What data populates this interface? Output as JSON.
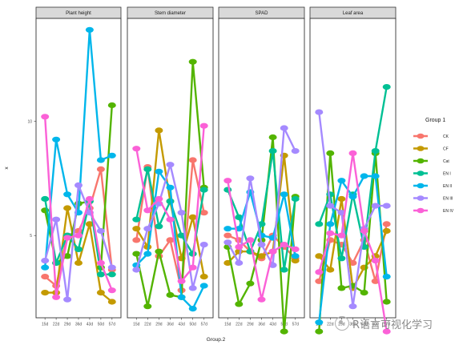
{
  "chart_data": {
    "type": "line",
    "xlabel": "Group.2",
    "ylabel": "x",
    "facets": [
      "Plant height",
      "Stem diameter",
      "SPAD",
      "Leaf area"
    ],
    "x": [
      "15d",
      "22d",
      "29d",
      "36d",
      "43d",
      "50d",
      "57d"
    ],
    "y_ticks": [
      5,
      10
    ],
    "ylim": [
      1.4,
      14.5
    ],
    "legend": {
      "title": "Group 1",
      "position": "right"
    },
    "grid": false,
    "series": [
      {
        "name": "CK",
        "color": "#F8766D",
        "values": [
          [
            3.2,
            2.8,
            5.0,
            5.2,
            6.2,
            7.9,
            3.5
          ],
          [
            4.8,
            8.0,
            4.1,
            4.8,
            2.6,
            8.3,
            6.0
          ],
          [
            5.0,
            4.8,
            4.3,
            4.0,
            5.0,
            4.5,
            4.0
          ],
          [
            3.0,
            4.8,
            4.6,
            3.8,
            4.8,
            3.0,
            5.5
          ]
        ]
      },
      {
        "name": "CF",
        "color": "#C49A00",
        "values": [
          [
            2.5,
            2.5,
            6.2,
            3.8,
            5.5,
            2.5,
            2.1
          ],
          [
            5.3,
            4.5,
            9.6,
            6.5,
            4.0,
            5.8,
            3.2
          ],
          [
            3.8,
            4.3,
            4.3,
            4.1,
            4.3,
            8.5,
            3.9
          ],
          [
            4.1,
            3.5,
            6.6,
            2.7,
            3.6,
            4.1,
            5.2
          ]
        ]
      },
      {
        "name": "Cat",
        "color": "#53B400",
        "values": [
          [
            6.1,
            3.8,
            4.1,
            6.4,
            6.5,
            3.6,
            10.7
          ],
          [
            4.2,
            1.9,
            4.3,
            2.4,
            2.3,
            12.6,
            7.1
          ],
          [
            4.5,
            2.0,
            2.9,
            4.8,
            9.3,
            0.8,
            6.7
          ],
          [
            0.8,
            8.6,
            2.7,
            2.8,
            2.5,
            8.6,
            2.1
          ]
        ]
      },
      {
        "name": "EN I",
        "color": "#00C094",
        "values": [
          [
            6.6,
            3.8,
            5.0,
            4.4,
            6.5,
            3.3,
            3.3
          ],
          [
            5.7,
            7.9,
            5.4,
            6.5,
            5.0,
            4.2,
            7.0
          ],
          [
            7.0,
            5.8,
            4.3,
            5.5,
            8.7,
            3.5,
            6.6
          ],
          [
            5.5,
            6.8,
            4.0,
            6.8,
            4.5,
            8.7,
            11.5
          ]
        ]
      },
      {
        "name": "EN II",
        "color": "#00B6EB",
        "values": [
          [
            3.6,
            9.2,
            6.8,
            6.0,
            14.0,
            8.3,
            8.5
          ],
          [
            3.7,
            4.2,
            7.8,
            7.1,
            2.3,
            1.8,
            2.8
          ],
          [
            5.3,
            5.3,
            6.9,
            5.0,
            4.9,
            6.8,
            4.1
          ],
          [
            1.2,
            5.5,
            7.4,
            6.7,
            7.6,
            7.6,
            3.2
          ]
        ]
      },
      {
        "name": "EN III",
        "color": "#A58AFF",
        "values": [
          [
            3.9,
            5.7,
            2.2,
            7.2,
            6.0,
            5.2,
            3.6
          ],
          [
            3.5,
            5.3,
            6.4,
            8.1,
            6.0,
            2.7,
            4.6
          ],
          [
            4.7,
            3.8,
            7.5,
            4.6,
            3.7,
            9.7,
            8.7
          ],
          [
            10.4,
            6.3,
            6.0,
            1.9,
            5.3,
            6.3,
            6.3
          ]
        ]
      },
      {
        "name": "EN IV",
        "color": "#FB61D7",
        "values": [
          [
            10.2,
            2.3,
            4.9,
            5.0,
            6.6,
            3.8,
            2.6
          ],
          [
            8.8,
            6.1,
            6.6,
            5.7,
            3.0,
            3.6,
            9.8
          ],
          [
            7.4,
            4.5,
            4.8,
            2.2,
            4.3,
            4.6,
            4.4
          ],
          [
            3.4,
            5.1,
            5.0,
            8.6,
            5.2,
            3.9,
            0.8
          ]
        ]
      }
    ]
  },
  "watermark": {
    "text": "R语言可视化学习",
    "icon": "wechat-eye-icon"
  }
}
